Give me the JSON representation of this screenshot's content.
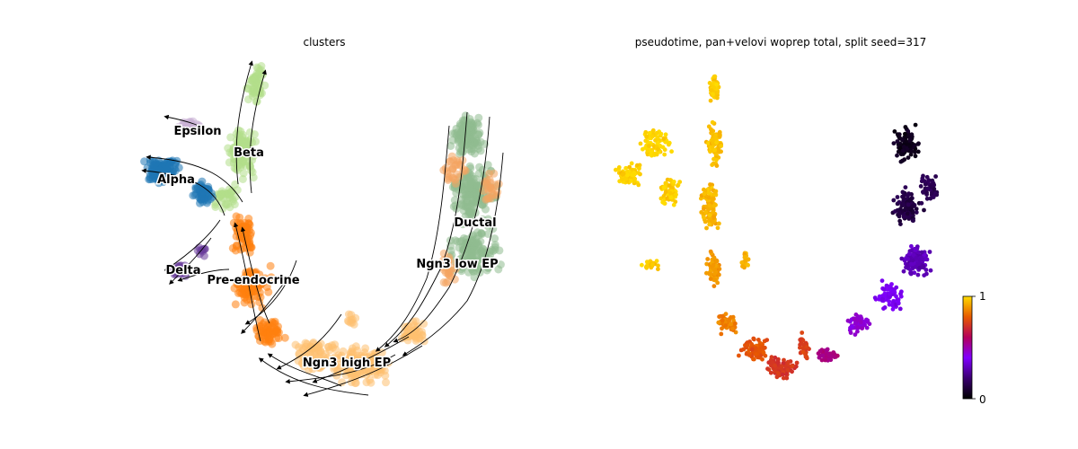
{
  "chart_data": [
    {
      "type": "scatter",
      "title": "clusters",
      "axes": "off",
      "overlay": "velocity-streamlines",
      "series": [
        {
          "name": "Ductal",
          "color": "#8fbc8f"
        },
        {
          "name": "Ngn3 low EP",
          "color": "#f4a460"
        },
        {
          "name": "Ngn3 high EP",
          "color": "#fdbf6f"
        },
        {
          "name": "Pre-endocrine",
          "color": "#ff7f0e"
        },
        {
          "name": "Beta",
          "color": "#b2df8a"
        },
        {
          "name": "Alpha",
          "color": "#1f77b4"
        },
        {
          "name": "Delta",
          "color": "#6a3d9a"
        },
        {
          "name": "Epsilon",
          "color": "#cab2d6"
        }
      ],
      "labels": [
        "Epsilon",
        "Beta",
        "Alpha",
        "Ductal",
        "Ngn3 low EP",
        "Delta",
        "Pre-endocrine",
        "Ngn3 high EP"
      ]
    },
    {
      "type": "scatter",
      "title": "pseudotime, pan+velovi woprep total, split seed=317",
      "axes": "off",
      "color_scale": "gnuplot",
      "colorbar": {
        "min": 0,
        "max": 1,
        "tick_labels": [
          "0",
          "1"
        ]
      }
    }
  ]
}
